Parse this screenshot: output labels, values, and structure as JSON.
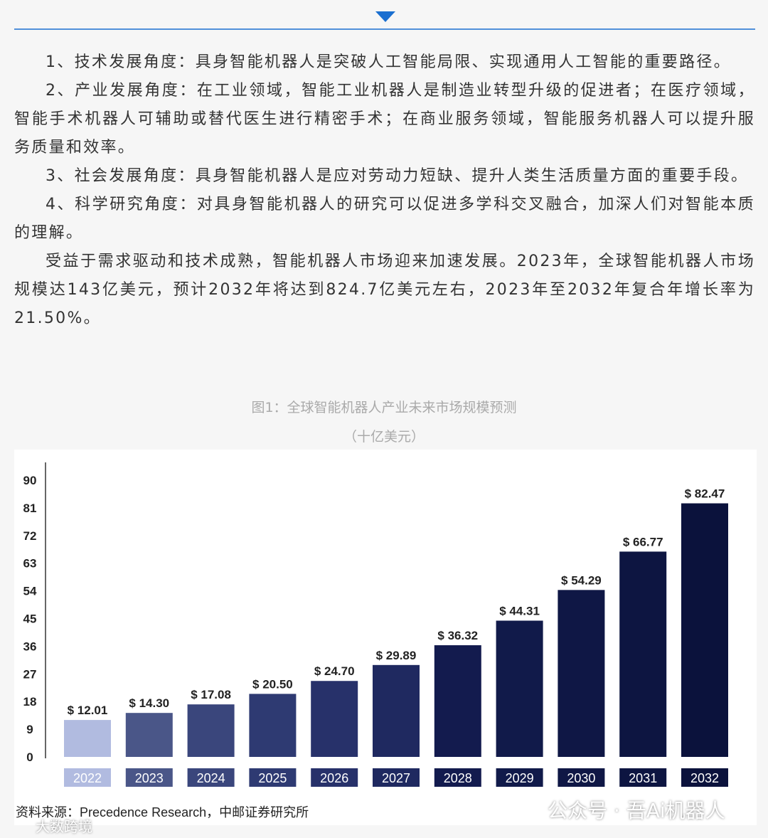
{
  "paragraphs": [
    "1、技术发展角度：具身智能机器人是突破人工智能局限、实现通用人工智能的重要路径。",
    "2、产业发展角度：在工业领域，智能工业机器人是制造业转型升级的促进者；在医疗领域，智能手术机器人可辅助或替代医生进行精密手术；在商业服务领域，智能服务机器人可以提升服务质量和效率。",
    "3、社会发展角度：具身智能机器人是应对劳动力短缺、提升人类生活质量方面的重要手段。",
    "4、科学研究角度：对具身智能机器人的研究可以促进多学科交叉融合，加深人们对智能本质的理解。",
    "受益于需求驱动和技术成熟，智能机器人市场迎来加速发展。2023年，全球智能机器人市场规模达143亿美元，预计2032年将达到824.7亿美元左右，2023年至2032年复合年增长率为21.50%。"
  ],
  "chart_data": {
    "type": "bar",
    "title": "图1：全球智能机器人产业未来市场规模预测",
    "subtitle": "（十亿美元）",
    "categories": [
      "2022",
      "2023",
      "2024",
      "2025",
      "2026",
      "2027",
      "2028",
      "2029",
      "2030",
      "2031",
      "2032"
    ],
    "values": [
      12.01,
      14.3,
      17.08,
      20.5,
      24.7,
      29.89,
      36.32,
      44.31,
      54.29,
      66.77,
      82.47
    ],
    "value_labels": [
      "$ 12.01",
      "$ 14.30",
      "$ 17.08",
      "$ 20.50",
      "$ 24.70",
      "$ 29.89",
      "$ 36.32",
      "$ 44.31",
      "$ 54.29",
      "$ 66.77",
      "$ 82.47"
    ],
    "colors": [
      "#b1bbe0",
      "#4a5688",
      "#3a467c",
      "#2e3a72",
      "#27316a",
      "#1f2960",
      "#131b4e",
      "#111a4a",
      "#0f1745",
      "#0d1541",
      "#0b123c"
    ],
    "ylim": [
      0,
      90
    ],
    "yticks": [
      0,
      9,
      18,
      27,
      36,
      45,
      54,
      63,
      72,
      81,
      90
    ],
    "source": "资料来源：Precedence Research，中邮证券研究所"
  },
  "watermarks": [
    "公众号 · 吾Ai机器人",
    "大数跨境"
  ]
}
